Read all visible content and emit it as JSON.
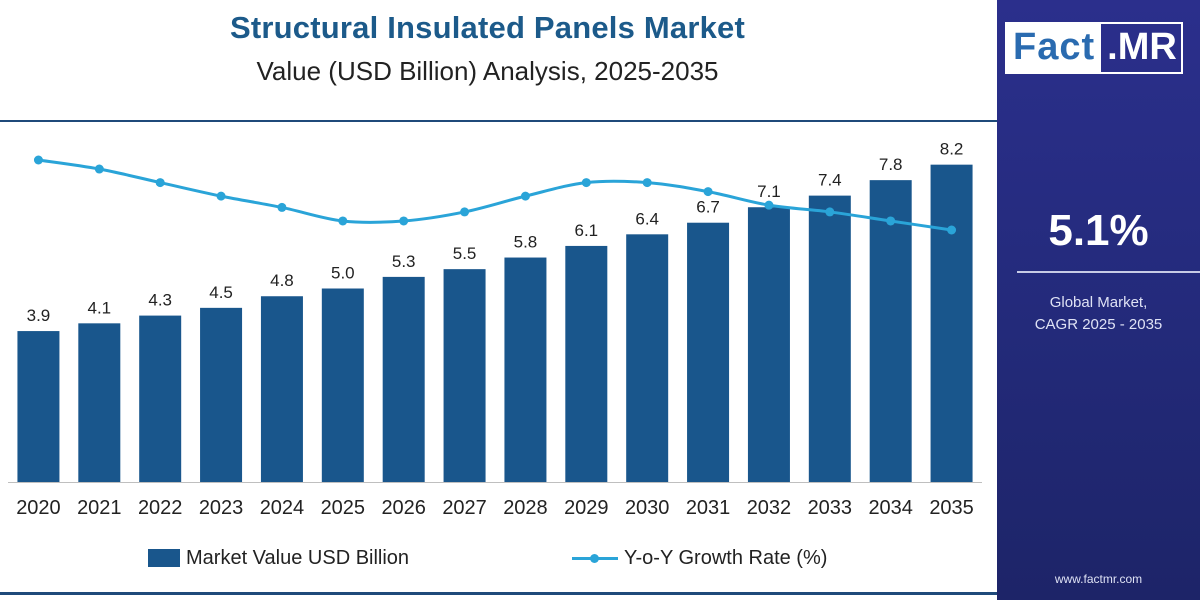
{
  "header": {
    "title": "Structural Insulated Panels Market",
    "subtitle": "Value (USD Billion) Analysis, 2025-2035"
  },
  "colors": {
    "bar": "#19568c",
    "line": "#2aa4d8",
    "accent_panel": "#262d80"
  },
  "chart_data": {
    "type": "bar",
    "categories": [
      "2020",
      "2021",
      "2022",
      "2023",
      "2024",
      "2025",
      "2026",
      "2027",
      "2028",
      "2029",
      "2030",
      "2031",
      "2032",
      "2033",
      "2034",
      "2035"
    ],
    "series": [
      {
        "name": "Market Value USD Billion",
        "type": "bar",
        "values": [
          3.9,
          4.1,
          4.3,
          4.5,
          4.8,
          5.0,
          5.3,
          5.5,
          5.8,
          6.1,
          6.4,
          6.7,
          7.1,
          7.4,
          7.8,
          8.2
        ],
        "labels": [
          "3.9",
          "4.1",
          "4.3",
          "4.5",
          "4.8",
          "5.0",
          "5.3",
          "5.5",
          "5.8",
          "6.1",
          "6.4",
          "6.7",
          "7.1",
          "7.4",
          "7.8",
          "8.2"
        ]
      },
      {
        "name": "Y-o-Y Growth Rate (%)",
        "type": "line",
        "values": [
          5.6,
          5.4,
          5.1,
          4.8,
          4.55,
          4.25,
          4.25,
          4.45,
          4.8,
          5.1,
          5.1,
          4.9,
          4.6,
          4.45,
          4.25,
          4.05
        ]
      }
    ],
    "ylim": [
      0,
      9
    ],
    "grid": false,
    "legend": "bottom"
  },
  "legend": {
    "bar_label": "Market Value USD Billion",
    "line_label": "Y-o-Y Growth Rate (%)"
  },
  "side": {
    "logo_fact": "Fact",
    "logo_mr": ".MR",
    "cagr_value": "5.1%",
    "cagr_label_1": "Global Market,",
    "cagr_label_2": "CAGR 2025 - 2035",
    "url": "www.factmr.com"
  }
}
